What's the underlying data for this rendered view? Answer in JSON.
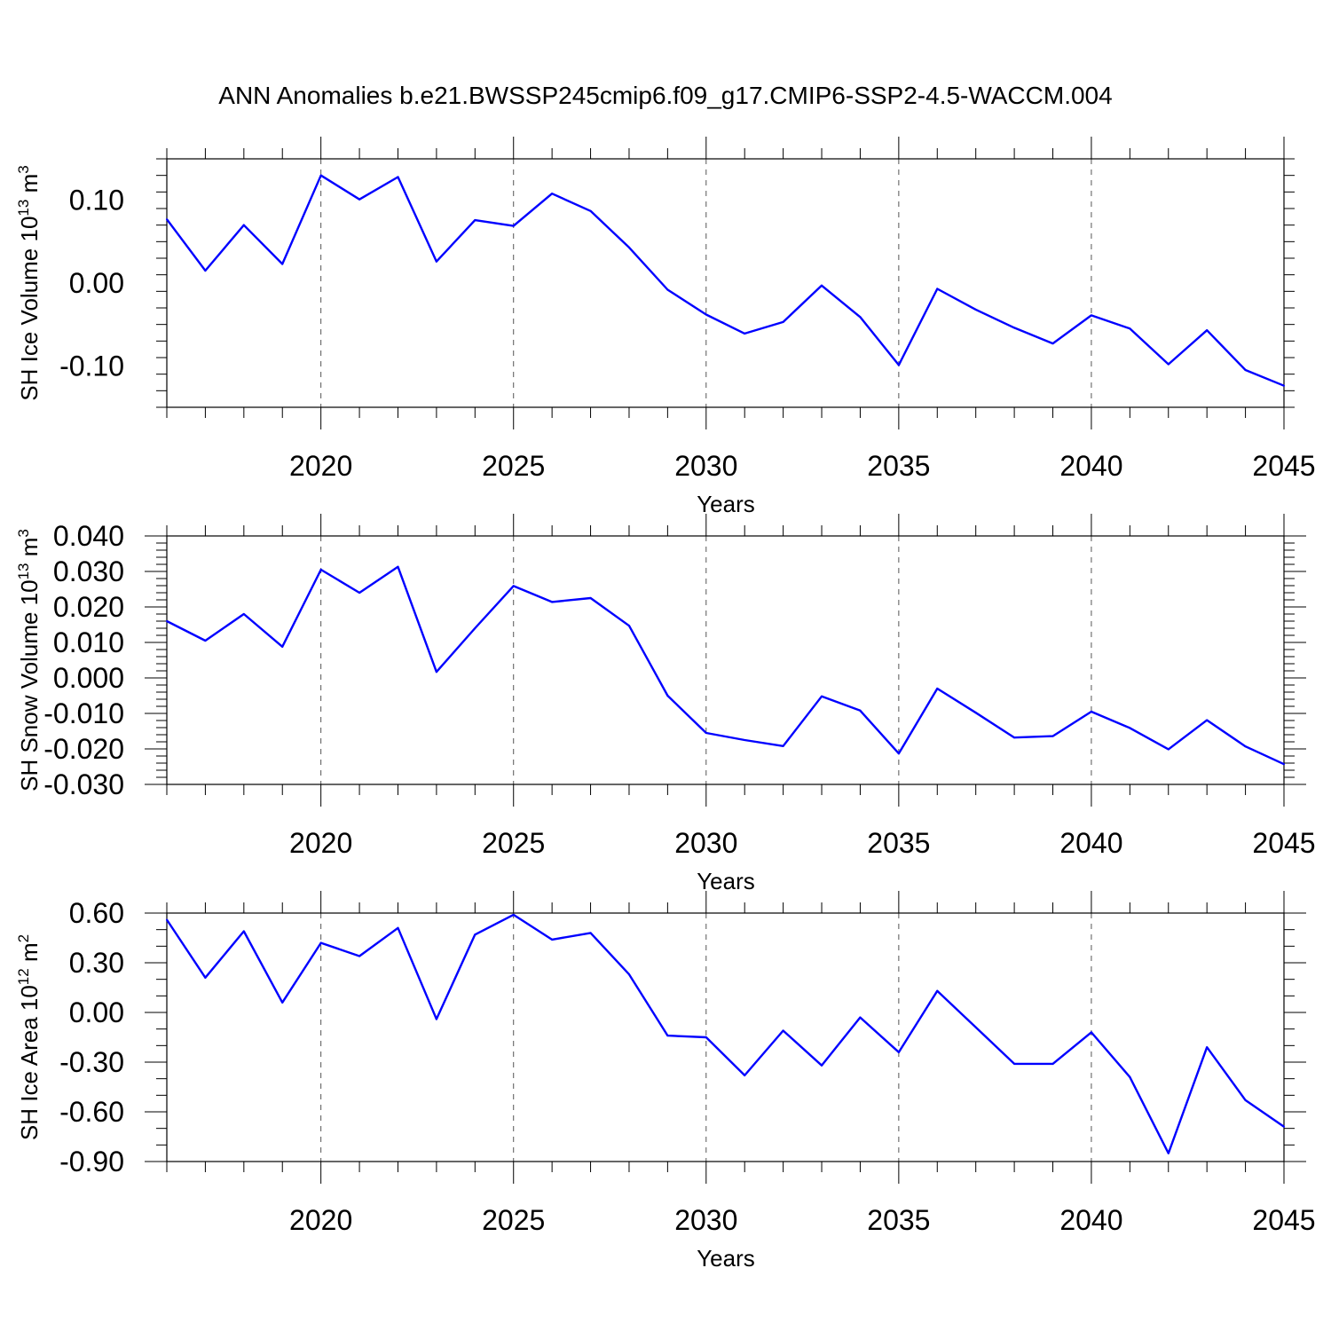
{
  "title": "ANN Anomalies b.e21.BWSSP245cmip6.f09_g17.CMIP6-SSP2-4.5-WACCM.004",
  "colors": {
    "series": "#0000ff",
    "axis": "#000000",
    "grid": "#555555"
  },
  "chart_data": [
    {
      "type": "line",
      "xlabel": "Years",
      "ylabel": {
        "text": "SH Ice Volume 10",
        "sup": "13",
        "unit": " m",
        "unit_sup": "3"
      },
      "xlim": [
        2016,
        2045
      ],
      "ylim": [
        -0.15,
        0.15
      ],
      "yticks": [
        0.1,
        0.0,
        -0.1
      ],
      "ytick_labels": [
        "0.10",
        "0.00",
        "-0.10"
      ],
      "yminor_step": 0.02,
      "xticks": [
        2020,
        2025,
        2030,
        2035,
        2040,
        2045
      ],
      "xtick_labels": [
        "2020",
        "2025",
        "2030",
        "2035",
        "2040",
        "2045"
      ],
      "grid": "dashed vertical at major x ticks",
      "x": [
        2016,
        2017,
        2018,
        2019,
        2020,
        2021,
        2022,
        2023,
        2024,
        2025,
        2026,
        2027,
        2028,
        2029,
        2030,
        2031,
        2032,
        2033,
        2034,
        2035,
        2036,
        2037,
        2038,
        2039,
        2040,
        2041,
        2042,
        2043,
        2044,
        2045
      ],
      "values": [
        0.077,
        0.015,
        0.07,
        0.023,
        0.13,
        0.101,
        0.128,
        0.026,
        0.076,
        0.069,
        0.108,
        0.087,
        0.043,
        -0.008,
        -0.038,
        -0.061,
        -0.047,
        -0.003,
        -0.041,
        -0.099,
        -0.007,
        -0.032,
        -0.054,
        -0.073,
        -0.039,
        -0.055,
        -0.098,
        -0.057,
        -0.105,
        -0.124
      ]
    },
    {
      "type": "line",
      "xlabel": "Years",
      "ylabel": {
        "text": "SH Snow Volume 10",
        "sup": "13",
        "unit": " m",
        "unit_sup": "3"
      },
      "xlim": [
        2016,
        2045
      ],
      "ylim": [
        -0.03,
        0.04
      ],
      "yticks": [
        0.04,
        0.03,
        0.02,
        0.01,
        0.0,
        -0.01,
        -0.02,
        -0.03
      ],
      "ytick_labels": [
        "0.040",
        "0.030",
        "0.020",
        "0.010",
        "0.000",
        "-0.010",
        "-0.020",
        "-0.030"
      ],
      "yminor_step": 0.002,
      "xticks": [
        2020,
        2025,
        2030,
        2035,
        2040,
        2045
      ],
      "xtick_labels": [
        "2020",
        "2025",
        "2030",
        "2035",
        "2040",
        "2045"
      ],
      "grid": "dashed vertical at major x ticks",
      "x": [
        2016,
        2017,
        2018,
        2019,
        2020,
        2021,
        2022,
        2023,
        2024,
        2025,
        2026,
        2027,
        2028,
        2029,
        2030,
        2031,
        2032,
        2033,
        2034,
        2035,
        2036,
        2037,
        2038,
        2039,
        2040,
        2041,
        2042,
        2043,
        2044,
        2045
      ],
      "values": [
        0.016,
        0.0105,
        0.018,
        0.0088,
        0.0305,
        0.024,
        0.0313,
        0.0017,
        0.014,
        0.0259,
        0.0214,
        0.0225,
        0.0147,
        -0.005,
        -0.0155,
        -0.0175,
        -0.0192,
        -0.0052,
        -0.0092,
        -0.0213,
        -0.003,
        -0.0098,
        -0.0168,
        -0.0164,
        -0.0095,
        -0.0141,
        -0.0201,
        -0.0119,
        -0.0193,
        -0.0243
      ]
    },
    {
      "type": "line",
      "xlabel": "Years",
      "ylabel": {
        "text": "SH Ice Area 10",
        "sup": "12",
        "unit": " m",
        "unit_sup": "2"
      },
      "xlim": [
        2016,
        2045
      ],
      "ylim": [
        -0.9,
        0.6
      ],
      "yticks": [
        0.6,
        0.3,
        0.0,
        -0.3,
        -0.6,
        -0.9
      ],
      "ytick_labels": [
        "0.60",
        "0.30",
        "0.00",
        "-0.30",
        "-0.60",
        "-0.90"
      ],
      "yminor_step": 0.1,
      "xticks": [
        2020,
        2025,
        2030,
        2035,
        2040,
        2045
      ],
      "xtick_labels": [
        "2020",
        "2025",
        "2030",
        "2035",
        "2040",
        "2045"
      ],
      "grid": "dashed vertical at major x ticks",
      "x": [
        2016,
        2017,
        2018,
        2019,
        2020,
        2021,
        2022,
        2023,
        2024,
        2025,
        2026,
        2027,
        2028,
        2029,
        2030,
        2031,
        2032,
        2033,
        2034,
        2035,
        2036,
        2037,
        2038,
        2039,
        2040,
        2041,
        2042,
        2043,
        2044,
        2045
      ],
      "values": [
        0.56,
        0.21,
        0.49,
        0.06,
        0.42,
        0.34,
        0.51,
        -0.04,
        0.47,
        0.59,
        0.44,
        0.48,
        0.23,
        -0.14,
        -0.15,
        -0.38,
        -0.11,
        -0.32,
        -0.03,
        -0.24,
        0.13,
        -0.09,
        -0.31,
        -0.31,
        -0.12,
        -0.39,
        -0.85,
        -0.21,
        -0.53,
        -0.69
      ]
    }
  ]
}
